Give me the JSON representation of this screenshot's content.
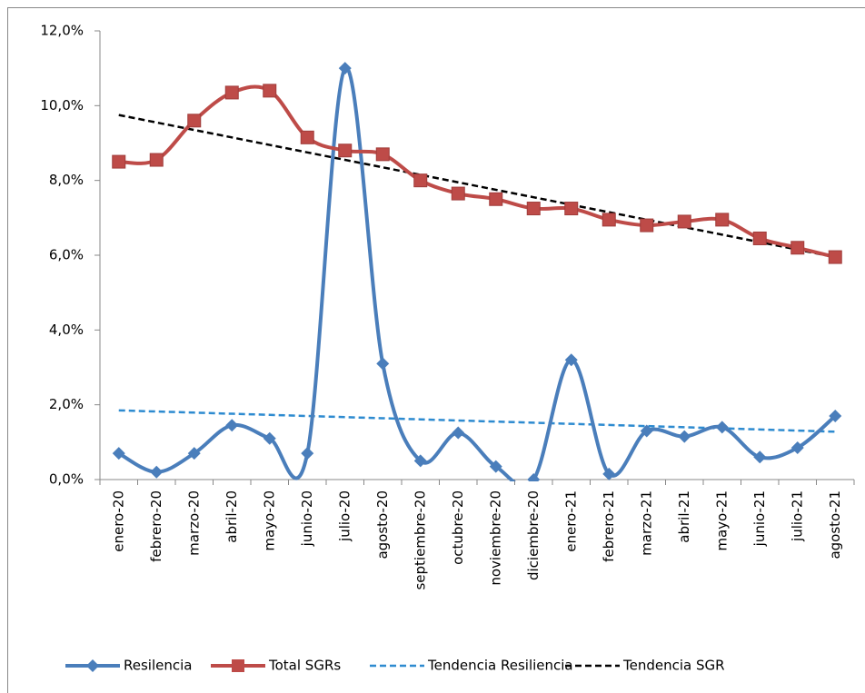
{
  "chart_data": {
    "type": "line",
    "categories": [
      "enero-20",
      "febrero-20",
      "marzo-20",
      "abril-20",
      "mayo-20",
      "junio-20",
      "julio-20",
      "agosto-20",
      "septiembre-20",
      "octubre-20",
      "noviembre-20",
      "diciembre-20",
      "enero-21",
      "febrero-21",
      "marzo-21",
      "abril-21",
      "mayo-21",
      "junio-21",
      "julio-21",
      "agosto-21"
    ],
    "series": [
      {
        "name": "Resilencia",
        "color": "#4a7ebb",
        "marker": "diamond",
        "smooth": true,
        "values": [
          0.7,
          0.2,
          0.7,
          1.45,
          1.1,
          0.7,
          11.0,
          3.1,
          0.5,
          1.25,
          0.35,
          0.0,
          3.2,
          0.15,
          1.3,
          1.15,
          1.4,
          0.6,
          0.85,
          1.7
        ]
      },
      {
        "name": "Total SGRs",
        "color": "#be4b48",
        "marker": "square",
        "smooth": true,
        "values": [
          8.5,
          8.55,
          9.6,
          10.35,
          10.4,
          9.15,
          8.8,
          8.7,
          8.0,
          7.65,
          7.5,
          7.25,
          7.25,
          6.95,
          6.8,
          6.9,
          6.95,
          6.45,
          6.2,
          5.95
        ]
      },
      {
        "name": "Tendencia Resiliencia",
        "color": "#2e8bd0",
        "dashed": true,
        "values": [
          1.85,
          1.82,
          1.79,
          1.76,
          1.73,
          1.7,
          1.67,
          1.64,
          1.61,
          1.58,
          1.55,
          1.52,
          1.49,
          1.46,
          1.43,
          1.4,
          1.37,
          1.34,
          1.31,
          1.28
        ]
      },
      {
        "name": "Tendencia SGR",
        "color": "#000000",
        "dashed": true,
        "values": [
          9.75,
          9.55,
          9.35,
          9.15,
          8.95,
          8.75,
          8.55,
          8.35,
          8.15,
          7.95,
          7.75,
          7.55,
          7.35,
          7.15,
          6.95,
          6.75,
          6.55,
          6.35,
          6.15,
          5.95
        ]
      }
    ],
    "ylim": [
      0,
      12
    ],
    "yticks": [
      {
        "value": 0,
        "label": "0,0%"
      },
      {
        "value": 2,
        "label": "2,0%"
      },
      {
        "value": 4,
        "label": "4,0%"
      },
      {
        "value": 6,
        "label": "6,0%"
      },
      {
        "value": 8,
        "label": "8,0%"
      },
      {
        "value": 10,
        "label": "10,0%"
      },
      {
        "value": 12,
        "label": "12,0%"
      }
    ],
    "legend": "bottom"
  }
}
